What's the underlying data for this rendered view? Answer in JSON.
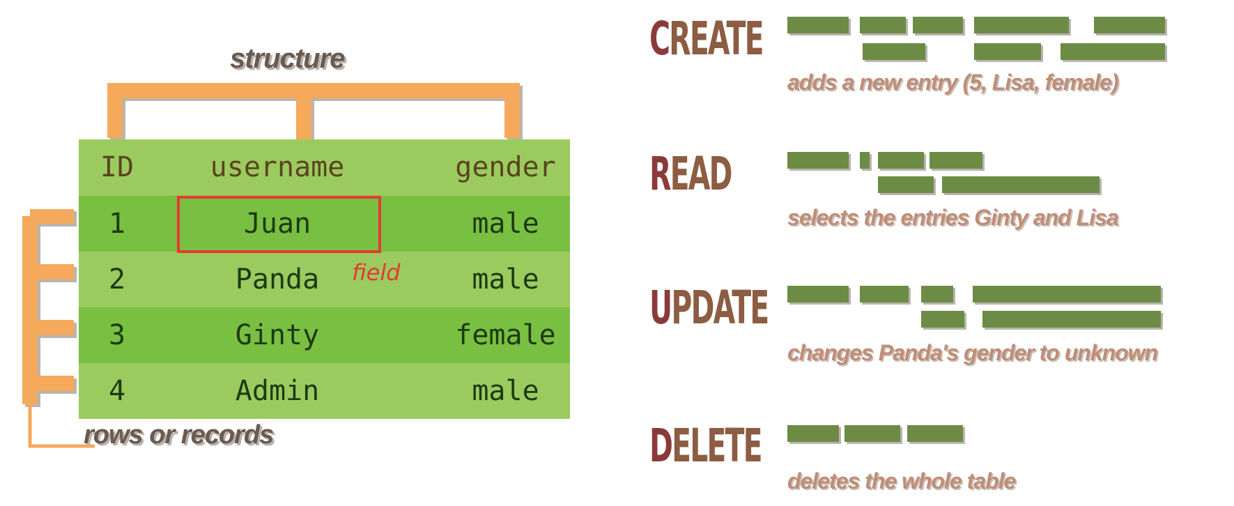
{
  "diagram": {
    "structure_label": "structure",
    "rows_label": "rows or records",
    "field_label": "field",
    "table": {
      "headers": [
        "ID",
        "username",
        "gender"
      ],
      "rows": [
        [
          "1",
          "Juan",
          "male"
        ],
        [
          "2",
          "Panda",
          "male"
        ],
        [
          "3",
          "Ginty",
          "female"
        ],
        [
          "4",
          "Admin",
          "male"
        ]
      ]
    }
  },
  "operations": [
    {
      "first_letter": "C",
      "rest": "REATE",
      "description": "adds a new entry (5, Lisa, female)"
    },
    {
      "first_letter": "R",
      "rest": "EAD",
      "description": "selects the entries Ginty and Lisa"
    },
    {
      "first_letter": "U",
      "rest": "PDATE",
      "description": "changes Panda's gender to unknown"
    },
    {
      "first_letter": "D",
      "rest": "ELETE",
      "description": "deletes the whole table"
    }
  ],
  "colors": {
    "header_row": "#9bcb5e",
    "row_dark": "#79bf41",
    "row_light": "#9bcb5e",
    "bracket": "#f5a95b",
    "field_highlight": "#e53935",
    "operation_word": "#8c5d42",
    "operation_first_letter": "#8a3a3a",
    "code_block": "#6c8c45",
    "description": "#c08d76"
  }
}
